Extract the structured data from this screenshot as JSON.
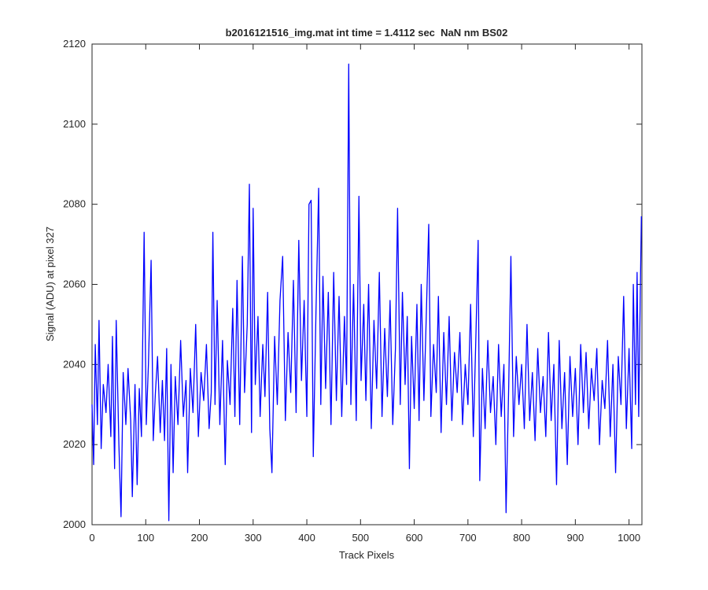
{
  "chart_data": {
    "type": "line",
    "title": "b2016121516_img.mat int time = 1.4112 sec  NaN nm BS02",
    "x_label": "Track Pixels",
    "y_label": "Signal (ADU) at pixel 327",
    "xlim": [
      0,
      1024
    ],
    "ylim": [
      2000,
      2120
    ],
    "xticks": [
      0,
      100,
      200,
      300,
      400,
      500,
      600,
      700,
      800,
      900,
      1000
    ],
    "yticks": [
      2000,
      2020,
      2040,
      2060,
      2080,
      2100,
      2120
    ],
    "grid": false,
    "x": [
      0,
      3,
      6,
      10,
      13,
      17,
      21,
      26,
      30,
      35,
      38,
      42,
      45,
      50,
      54,
      58,
      63,
      67,
      72,
      75,
      80,
      84,
      88,
      92,
      97,
      101,
      105,
      110,
      114,
      118,
      122,
      127,
      131,
      135,
      139,
      143,
      147,
      151,
      155,
      160,
      165,
      170,
      175,
      178,
      183,
      188,
      193,
      198,
      203,
      208,
      213,
      218,
      222,
      225,
      229,
      233,
      238,
      243,
      248,
      252,
      257,
      262,
      266,
      270,
      275,
      280,
      284,
      289,
      293,
      297,
      300,
      304,
      309,
      313,
      318,
      322,
      327,
      331,
      335,
      340,
      345,
      350,
      355,
      360,
      365,
      370,
      375,
      380,
      385,
      390,
      395,
      400,
      404,
      408,
      412,
      417,
      422,
      426,
      430,
      435,
      440,
      445,
      450,
      455,
      460,
      465,
      470,
      474,
      478,
      482,
      487,
      492,
      497,
      501,
      506,
      510,
      515,
      520,
      525,
      530,
      535,
      540,
      545,
      550,
      555,
      560,
      565,
      569,
      574,
      578,
      583,
      587,
      591,
      595,
      600,
      605,
      609,
      613,
      618,
      622,
      627,
      631,
      636,
      641,
      645,
      650,
      655,
      660,
      665,
      670,
      675,
      680,
      685,
      690,
      695,
      700,
      705,
      710,
      715,
      719,
      722,
      727,
      732,
      737,
      742,
      747,
      752,
      757,
      762,
      767,
      771,
      776,
      780,
      785,
      790,
      795,
      800,
      805,
      810,
      815,
      820,
      825,
      830,
      835,
      840,
      845,
      850,
      855,
      860,
      865,
      870,
      875,
      880,
      885,
      890,
      895,
      900,
      905,
      910,
      915,
      920,
      925,
      930,
      935,
      940,
      945,
      950,
      955,
      960,
      965,
      970,
      975,
      980,
      985,
      990,
      995,
      1000,
      1005,
      1008,
      1012,
      1015,
      1018,
      1021,
      1023
    ],
    "series": [
      {
        "name": "signal",
        "color": "#0000ff",
        "values": [
          2030,
          2015,
          2045,
          2025,
          2051,
          2019,
          2035,
          2028,
          2040,
          2022,
          2047,
          2014,
          2051,
          2020,
          2002,
          2038,
          2025,
          2039,
          2026,
          2007,
          2035,
          2010,
          2034,
          2022,
          2073,
          2025,
          2040,
          2066,
          2021,
          2033,
          2042,
          2023,
          2036,
          2021,
          2044,
          2001,
          2040,
          2013,
          2037,
          2025,
          2046,
          2027,
          2036,
          2013,
          2039,
          2028,
          2050,
          2022,
          2038,
          2031,
          2045,
          2024,
          2033,
          2073,
          2030,
          2056,
          2025,
          2046,
          2015,
          2041,
          2030,
          2054,
          2027,
          2061,
          2025,
          2067,
          2033,
          2050,
          2085,
          2023,
          2079,
          2035,
          2052,
          2027,
          2045,
          2032,
          2058,
          2024,
          2013,
          2047,
          2030,
          2056,
          2067,
          2026,
          2048,
          2033,
          2061,
          2028,
          2071,
          2036,
          2056,
          2027,
          2080,
          2081,
          2017,
          2053,
          2084,
          2030,
          2062,
          2034,
          2058,
          2025,
          2063,
          2031,
          2057,
          2027,
          2052,
          2035,
          2115,
          2030,
          2060,
          2026,
          2082,
          2036,
          2055,
          2031,
          2060,
          2024,
          2051,
          2034,
          2063,
          2027,
          2049,
          2032,
          2056,
          2025,
          2044,
          2079,
          2030,
          2058,
          2035,
          2052,
          2014,
          2047,
          2029,
          2055,
          2026,
          2060,
          2031,
          2050,
          2075,
          2027,
          2045,
          2033,
          2057,
          2023,
          2048,
          2030,
          2052,
          2026,
          2043,
          2033,
          2048,
          2025,
          2040,
          2030,
          2055,
          2022,
          2048,
          2071,
          2011,
          2039,
          2024,
          2046,
          2028,
          2037,
          2020,
          2045,
          2027,
          2040,
          2003,
          2035,
          2067,
          2022,
          2042,
          2030,
          2040,
          2024,
          2050,
          2026,
          2038,
          2021,
          2044,
          2028,
          2037,
          2022,
          2048,
          2026,
          2040,
          2010,
          2046,
          2024,
          2038,
          2015,
          2042,
          2027,
          2039,
          2020,
          2045,
          2028,
          2043,
          2024,
          2039,
          2031,
          2044,
          2020,
          2036,
          2029,
          2046,
          2022,
          2040,
          2013,
          2042,
          2030,
          2057,
          2024,
          2044,
          2019,
          2060,
          2030,
          2063,
          2027,
          2058,
          2077
        ]
      }
    ]
  }
}
